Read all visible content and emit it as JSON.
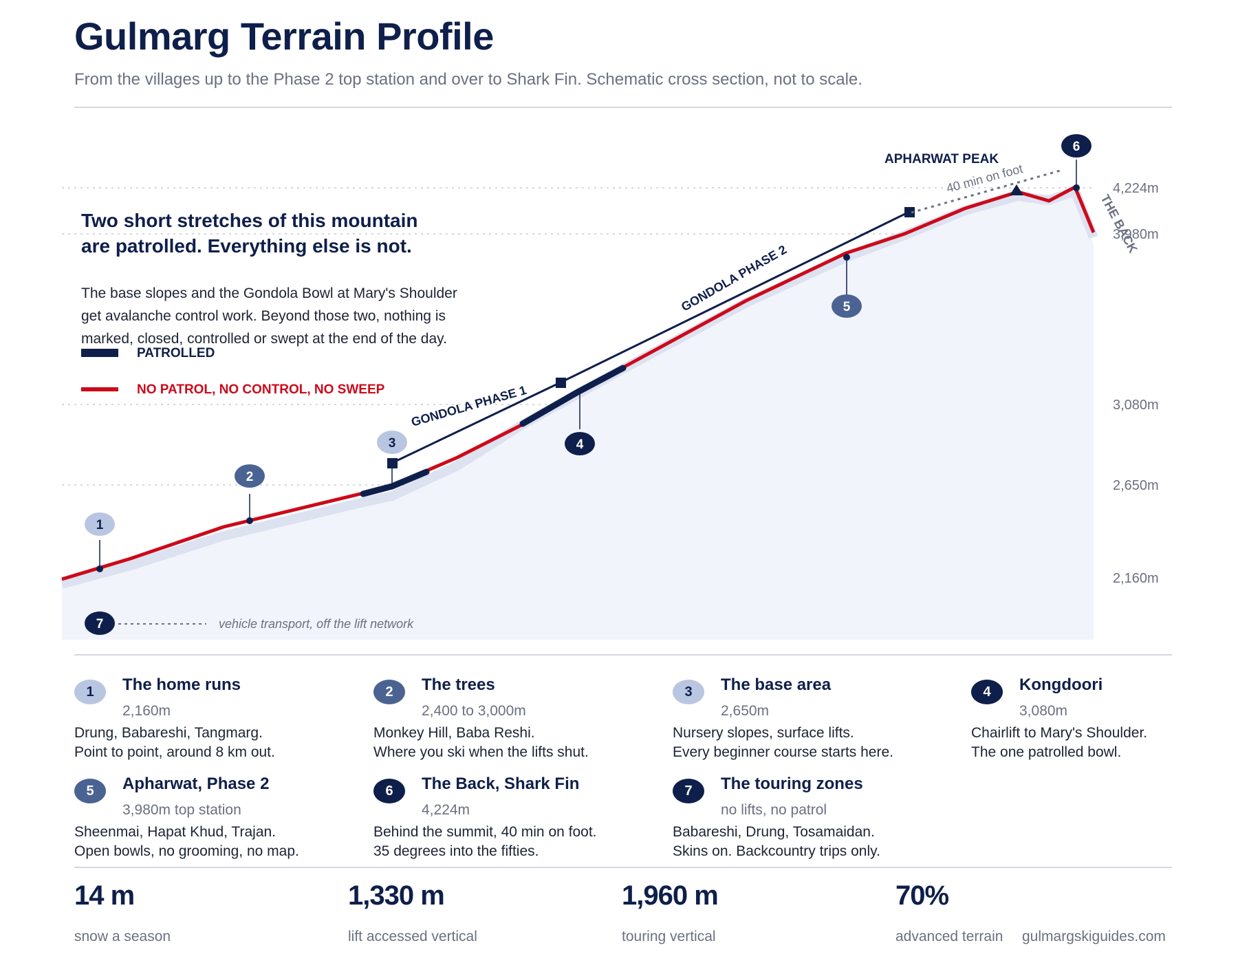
{
  "header": {
    "title": "Gulmarg Terrain Profile",
    "subtitle": "From the villages up to the Phase 2 top station and over to Shark Fin. Schematic cross section, not to scale."
  },
  "callout": {
    "headline_line1": "Two short stretches of this mountain",
    "headline_line2": "are patrolled. Everything else is not.",
    "body_line1": "The base slopes and the Gondola Bowl at Mary's Shoulder",
    "body_line2": "get avalanche control work. Beyond those two, nothing is",
    "body_line3": "marked, closed, controlled or swept at the end of the day."
  },
  "legend": {
    "patrolled": "PATROLLED",
    "unpatrolled": "NO PATROL, NO CONTROL, NO SWEEP"
  },
  "elevations": [
    "4,224m",
    "3,980m",
    "3,080m",
    "2,650m",
    "2,160m"
  ],
  "profile_labels": {
    "peak": "APHARWAT PEAK",
    "gondola1": "GONDOLA PHASE 1",
    "gondola2": "GONDOLA PHASE 2",
    "on_foot": "40 min on foot",
    "the_back": "THE BACK",
    "vehicle": "vehicle transport, off the lift network"
  },
  "markers": [
    "1",
    "2",
    "3",
    "4",
    "5",
    "6",
    "7"
  ],
  "zones": [
    {
      "num": "1",
      "title": "The home runs",
      "sub": "2,160m",
      "line1": "Drung, Babareshi, Tangmarg.",
      "line2": "Point to point, around 8 km out."
    },
    {
      "num": "2",
      "title": "The trees",
      "sub": "2,400 to 3,000m",
      "line1": "Monkey Hill, Baba Reshi.",
      "line2": "Where you ski when the lifts shut."
    },
    {
      "num": "3",
      "title": "The base area",
      "sub": "2,650m",
      "line1": "Nursery slopes, surface lifts.",
      "line2": "Every beginner course starts here."
    },
    {
      "num": "4",
      "title": "Kongdoori",
      "sub": "3,080m",
      "line1": "Chairlift to Mary's Shoulder.",
      "line2": "The one patrolled bowl."
    },
    {
      "num": "5",
      "title": "Apharwat, Phase 2",
      "sub": "3,980m top station",
      "line1": "Sheenmai, Hapat Khud, Trajan.",
      "line2": "Open bowls, no grooming, no map."
    },
    {
      "num": "6",
      "title": "The Back, Shark Fin",
      "sub": "4,224m",
      "line1": "Behind the summit, 40 min on foot.",
      "line2": "35 degrees into the fifties."
    },
    {
      "num": "7",
      "title": "The touring zones",
      "sub": "no lifts, no patrol",
      "line1": "Babareshi, Drung, Tosamaidan.",
      "line2": "Skins on. Backcountry trips only."
    }
  ],
  "stats": [
    {
      "value": "14 m",
      "label": "snow a season"
    },
    {
      "value": "1,330 m",
      "label": "lift accessed vertical"
    },
    {
      "value": "1,960 m",
      "label": "touring vertical"
    },
    {
      "value": "70%",
      "label": "advanced terrain"
    }
  ],
  "footer": {
    "website": "gulmargskiguides.com"
  },
  "colors": {
    "navy": "#0f1f4b",
    "red": "#cc0a1a",
    "terrain": "#f2f4fb",
    "badge_light": "#b9c6e2",
    "badge_mid": "#4a6392",
    "badge_dark": "#0f1f4b"
  }
}
